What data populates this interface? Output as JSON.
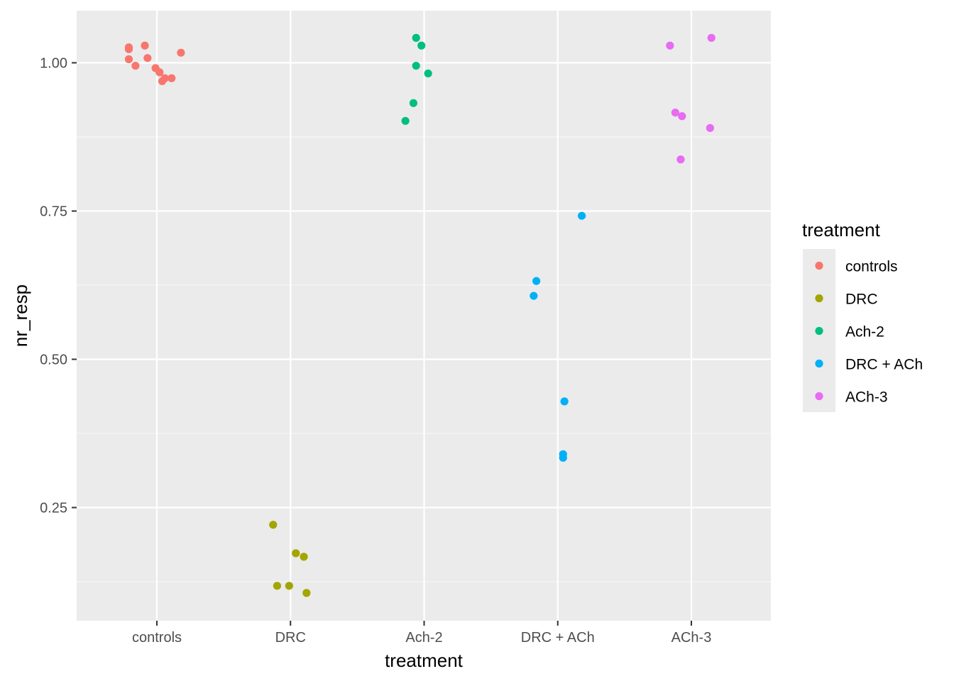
{
  "chart_data": {
    "type": "scatter",
    "xlabel": "treatment",
    "ylabel": "nr_resp",
    "categories": [
      "controls",
      "DRC",
      "Ach-2",
      "DRC + ACh",
      "ACh-3"
    ],
    "ylim": [
      0.07,
      1.09
    ],
    "y_ticks": [
      0.25,
      0.5,
      0.75,
      1.0
    ],
    "y_tick_labels": [
      "0.25",
      "0.50",
      "0.75",
      "1.00"
    ],
    "grid": true,
    "legend_position": "right",
    "legend": {
      "title": "treatment",
      "entries": [
        "controls",
        "DRC",
        "Ach-2",
        "DRC + ACh",
        "ACh-3"
      ]
    },
    "series": [
      {
        "name": "controls",
        "color": "#F8766D",
        "points": [
          {
            "x": 0.79,
            "y": 1.026
          },
          {
            "x": 0.79,
            "y": 1.023
          },
          {
            "x": 0.91,
            "y": 1.029
          },
          {
            "x": 1.18,
            "y": 1.017
          },
          {
            "x": 0.79,
            "y": 1.006
          },
          {
            "x": 0.93,
            "y": 1.008
          },
          {
            "x": 0.84,
            "y": 0.995
          },
          {
            "x": 0.99,
            "y": 0.991
          },
          {
            "x": 1.02,
            "y": 0.984
          },
          {
            "x": 1.06,
            "y": 0.974
          },
          {
            "x": 1.11,
            "y": 0.974
          },
          {
            "x": 1.04,
            "y": 0.969
          }
        ]
      },
      {
        "name": "DRC",
        "color": "#A3A500",
        "points": [
          {
            "x": 1.87,
            "y": 0.221
          },
          {
            "x": 2.04,
            "y": 0.173
          },
          {
            "x": 2.1,
            "y": 0.167
          },
          {
            "x": 1.9,
            "y": 0.118
          },
          {
            "x": 1.99,
            "y": 0.118
          },
          {
            "x": 2.12,
            "y": 0.106
          }
        ]
      },
      {
        "name": "Ach-2",
        "color": "#00BF7D",
        "points": [
          {
            "x": 2.94,
            "y": 1.042
          },
          {
            "x": 2.98,
            "y": 1.029
          },
          {
            "x": 2.94,
            "y": 0.995
          },
          {
            "x": 3.03,
            "y": 0.982
          },
          {
            "x": 2.92,
            "y": 0.932
          },
          {
            "x": 2.86,
            "y": 0.902
          }
        ]
      },
      {
        "name": "DRC + ACh",
        "color": "#00B0F6",
        "points": [
          {
            "x": 4.18,
            "y": 0.742
          },
          {
            "x": 3.84,
            "y": 0.632
          },
          {
            "x": 3.82,
            "y": 0.607
          },
          {
            "x": 4.05,
            "y": 0.429
          },
          {
            "x": 4.04,
            "y": 0.34
          },
          {
            "x": 4.04,
            "y": 0.334
          }
        ]
      },
      {
        "name": "ACh-3",
        "color": "#E76BF3",
        "points": [
          {
            "x": 5.15,
            "y": 1.042
          },
          {
            "x": 4.84,
            "y": 1.029
          },
          {
            "x": 4.88,
            "y": 0.916
          },
          {
            "x": 4.93,
            "y": 0.91
          },
          {
            "x": 5.14,
            "y": 0.89
          },
          {
            "x": 4.92,
            "y": 0.837
          }
        ]
      }
    ],
    "colors": {
      "panel_background": "#EBEBEB",
      "grid_major": "#FFFFFF",
      "grid_minor": "#F5F5F5",
      "tick_color": "#333333"
    }
  }
}
